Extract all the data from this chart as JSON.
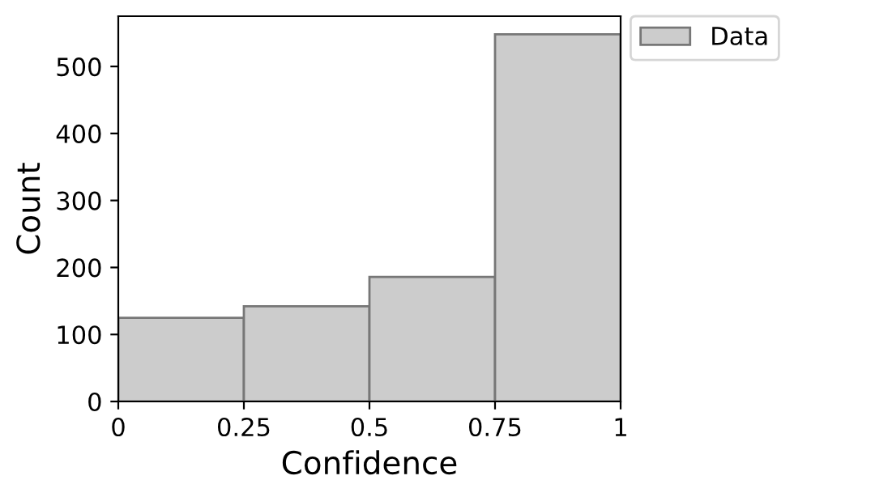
{
  "chart_data": {
    "type": "histogram",
    "xlabel": "Confidence",
    "ylabel": "Count",
    "bins": [
      0,
      0.25,
      0.5,
      0.75,
      1
    ],
    "series": [
      {
        "name": "Data",
        "color": "#cccccc",
        "values": [
          125,
          142,
          186,
          548
        ]
      }
    ],
    "xlim": [
      0,
      1
    ],
    "xticks": [
      0,
      0.25,
      0.5,
      0.75,
      1
    ],
    "ylim": [
      0,
      575
    ],
    "yticks": [
      0,
      100,
      200,
      300,
      400,
      500
    ],
    "grid": false,
    "legend": "top right"
  }
}
